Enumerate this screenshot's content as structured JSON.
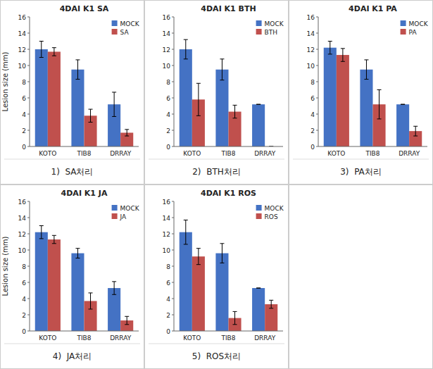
{
  "chart_data": [
    {
      "type": "bar",
      "title": "4DAI K1 SA",
      "subtitle": "1)  SA처리",
      "ylabel": "Lesion size (mm)",
      "categories": [
        "KOTO",
        "TIB8",
        "DRRAY"
      ],
      "series": [
        {
          "name": "MOCK",
          "color": "#4472C4",
          "values": [
            12.0,
            9.5,
            5.2
          ],
          "errors": [
            1.0,
            1.2,
            1.5
          ]
        },
        {
          "name": "SA",
          "color": "#C0504D",
          "values": [
            11.7,
            3.8,
            1.7
          ],
          "errors": [
            0.5,
            0.8,
            0.4
          ]
        }
      ],
      "ylim": [
        0,
        16
      ],
      "yticks": [
        0,
        2,
        4,
        6,
        8,
        10,
        12,
        14,
        16
      ],
      "legend": "upper right"
    },
    {
      "type": "bar",
      "title": "4DAI K1 BTH",
      "subtitle": "2)  BTH처리",
      "categories": [
        "KOTO",
        "TIB8",
        "DRRAY"
      ],
      "series": [
        {
          "name": "MOCK",
          "color": "#4472C4",
          "values": [
            12.0,
            9.5,
            5.2
          ],
          "errors": [
            1.2,
            1.3,
            0
          ]
        },
        {
          "name": "BTH",
          "color": "#C0504D",
          "values": [
            5.8,
            4.3,
            0
          ],
          "errors": [
            2.0,
            0.8,
            0
          ]
        }
      ],
      "ylim": [
        0,
        16
      ],
      "yticks": [
        0,
        2,
        4,
        6,
        8,
        10,
        12,
        14,
        16
      ],
      "legend": "upper right"
    },
    {
      "type": "bar",
      "title": "4DAI K1 PA",
      "subtitle": "3)  PA처리",
      "categories": [
        "KOTO",
        "TIB8",
        "DRRAY"
      ],
      "series": [
        {
          "name": "MOCK",
          "color": "#4472C4",
          "values": [
            12.2,
            9.5,
            5.2
          ],
          "errors": [
            0.8,
            1.2,
            0
          ]
        },
        {
          "name": "PA",
          "color": "#C0504D",
          "values": [
            11.3,
            5.2,
            1.9
          ],
          "errors": [
            0.8,
            1.8,
            0.6
          ]
        }
      ],
      "ylim": [
        0,
        16
      ],
      "yticks": [
        0,
        2,
        4,
        6,
        8,
        10,
        12,
        14,
        16
      ],
      "legend": "upper right"
    },
    {
      "type": "bar",
      "title": "4DAI K1 JA",
      "subtitle": "4)  JA처리",
      "ylabel": "Lesion size (mm)",
      "categories": [
        "KOTO",
        "TIB8",
        "DRRAY"
      ],
      "series": [
        {
          "name": "MOCK",
          "color": "#4472C4",
          "values": [
            12.2,
            9.6,
            5.3
          ],
          "errors": [
            0.8,
            0.6,
            0.8
          ]
        },
        {
          "name": "JA",
          "color": "#C0504D",
          "values": [
            11.3,
            3.7,
            1.3
          ],
          "errors": [
            0.5,
            1.0,
            0.5
          ]
        }
      ],
      "ylim": [
        0,
        16
      ],
      "yticks": [
        0,
        2,
        4,
        6,
        8,
        10,
        12,
        14,
        16
      ],
      "legend": "upper right"
    },
    {
      "type": "bar",
      "title": "4DAI K1 ROS",
      "subtitle": "5)  ROS처리",
      "categories": [
        "KOTO",
        "TIB8",
        "DRRAY"
      ],
      "series": [
        {
          "name": "MOCK",
          "color": "#4472C4",
          "values": [
            12.2,
            9.6,
            5.3
          ],
          "errors": [
            1.5,
            1.2,
            0
          ]
        },
        {
          "name": "ROS",
          "color": "#C0504D",
          "values": [
            9.2,
            1.6,
            3.3
          ],
          "errors": [
            1.0,
            0.8,
            0.5
          ]
        }
      ],
      "ylim": [
        0,
        16
      ],
      "yticks": [
        0,
        2,
        4,
        6,
        8,
        10,
        12,
        14,
        16
      ],
      "legend": "upper right"
    }
  ]
}
